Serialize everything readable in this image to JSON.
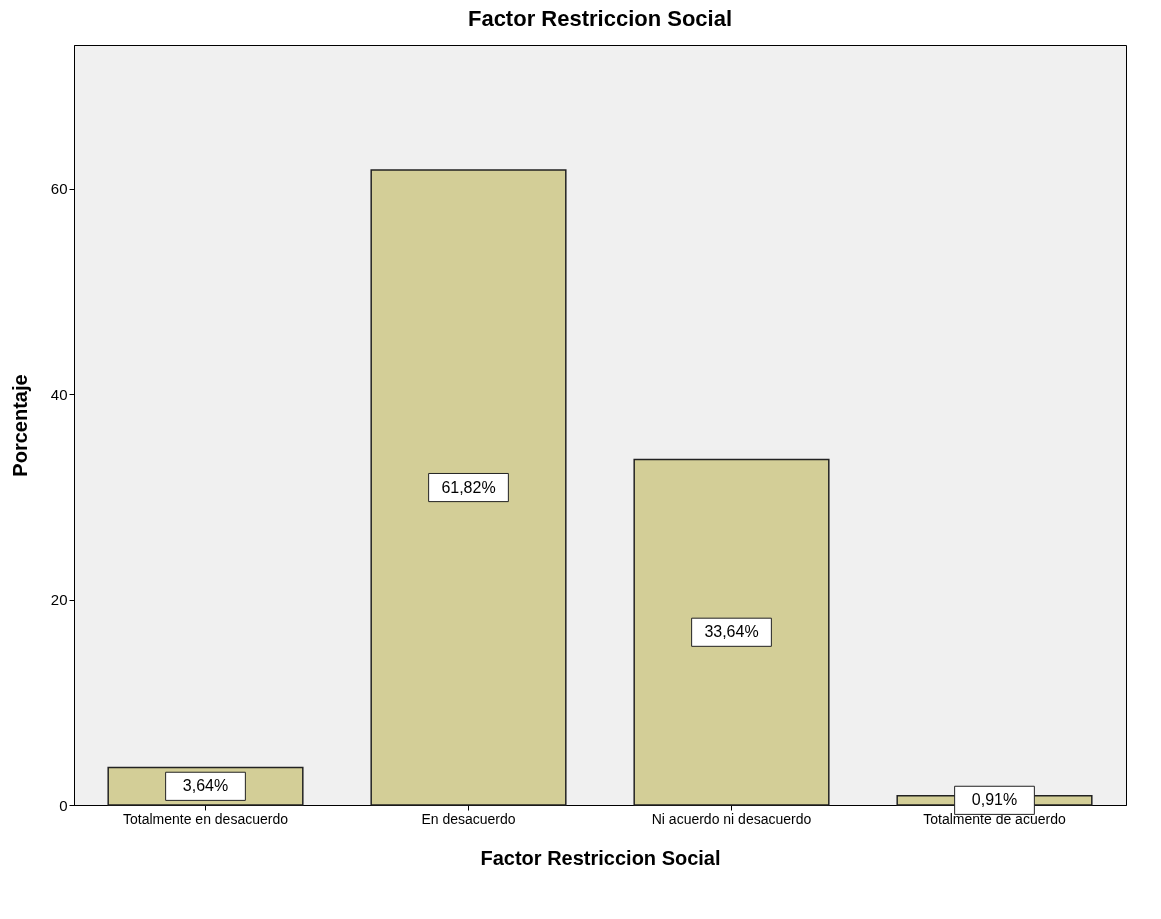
{
  "chart_data": {
    "type": "bar",
    "title": "Factor Restriccion Social",
    "xlabel": "Factor Restriccion Social",
    "ylabel": "Porcentaje",
    "categories": [
      "Totalmente en desacuerdo",
      "En desacuerdo",
      "Ni acuerdo ni desacuerdo",
      "Totalmente de acuerdo"
    ],
    "values": [
      3.64,
      61.82,
      33.64,
      0.91
    ],
    "value_labels": [
      "3,64%",
      "61,82%",
      "33,64%",
      "0,91%"
    ],
    "color": "#d3ce97",
    "ylim": [
      0,
      74
    ],
    "yticks": [
      0,
      20,
      40,
      60
    ],
    "grid": false
  }
}
